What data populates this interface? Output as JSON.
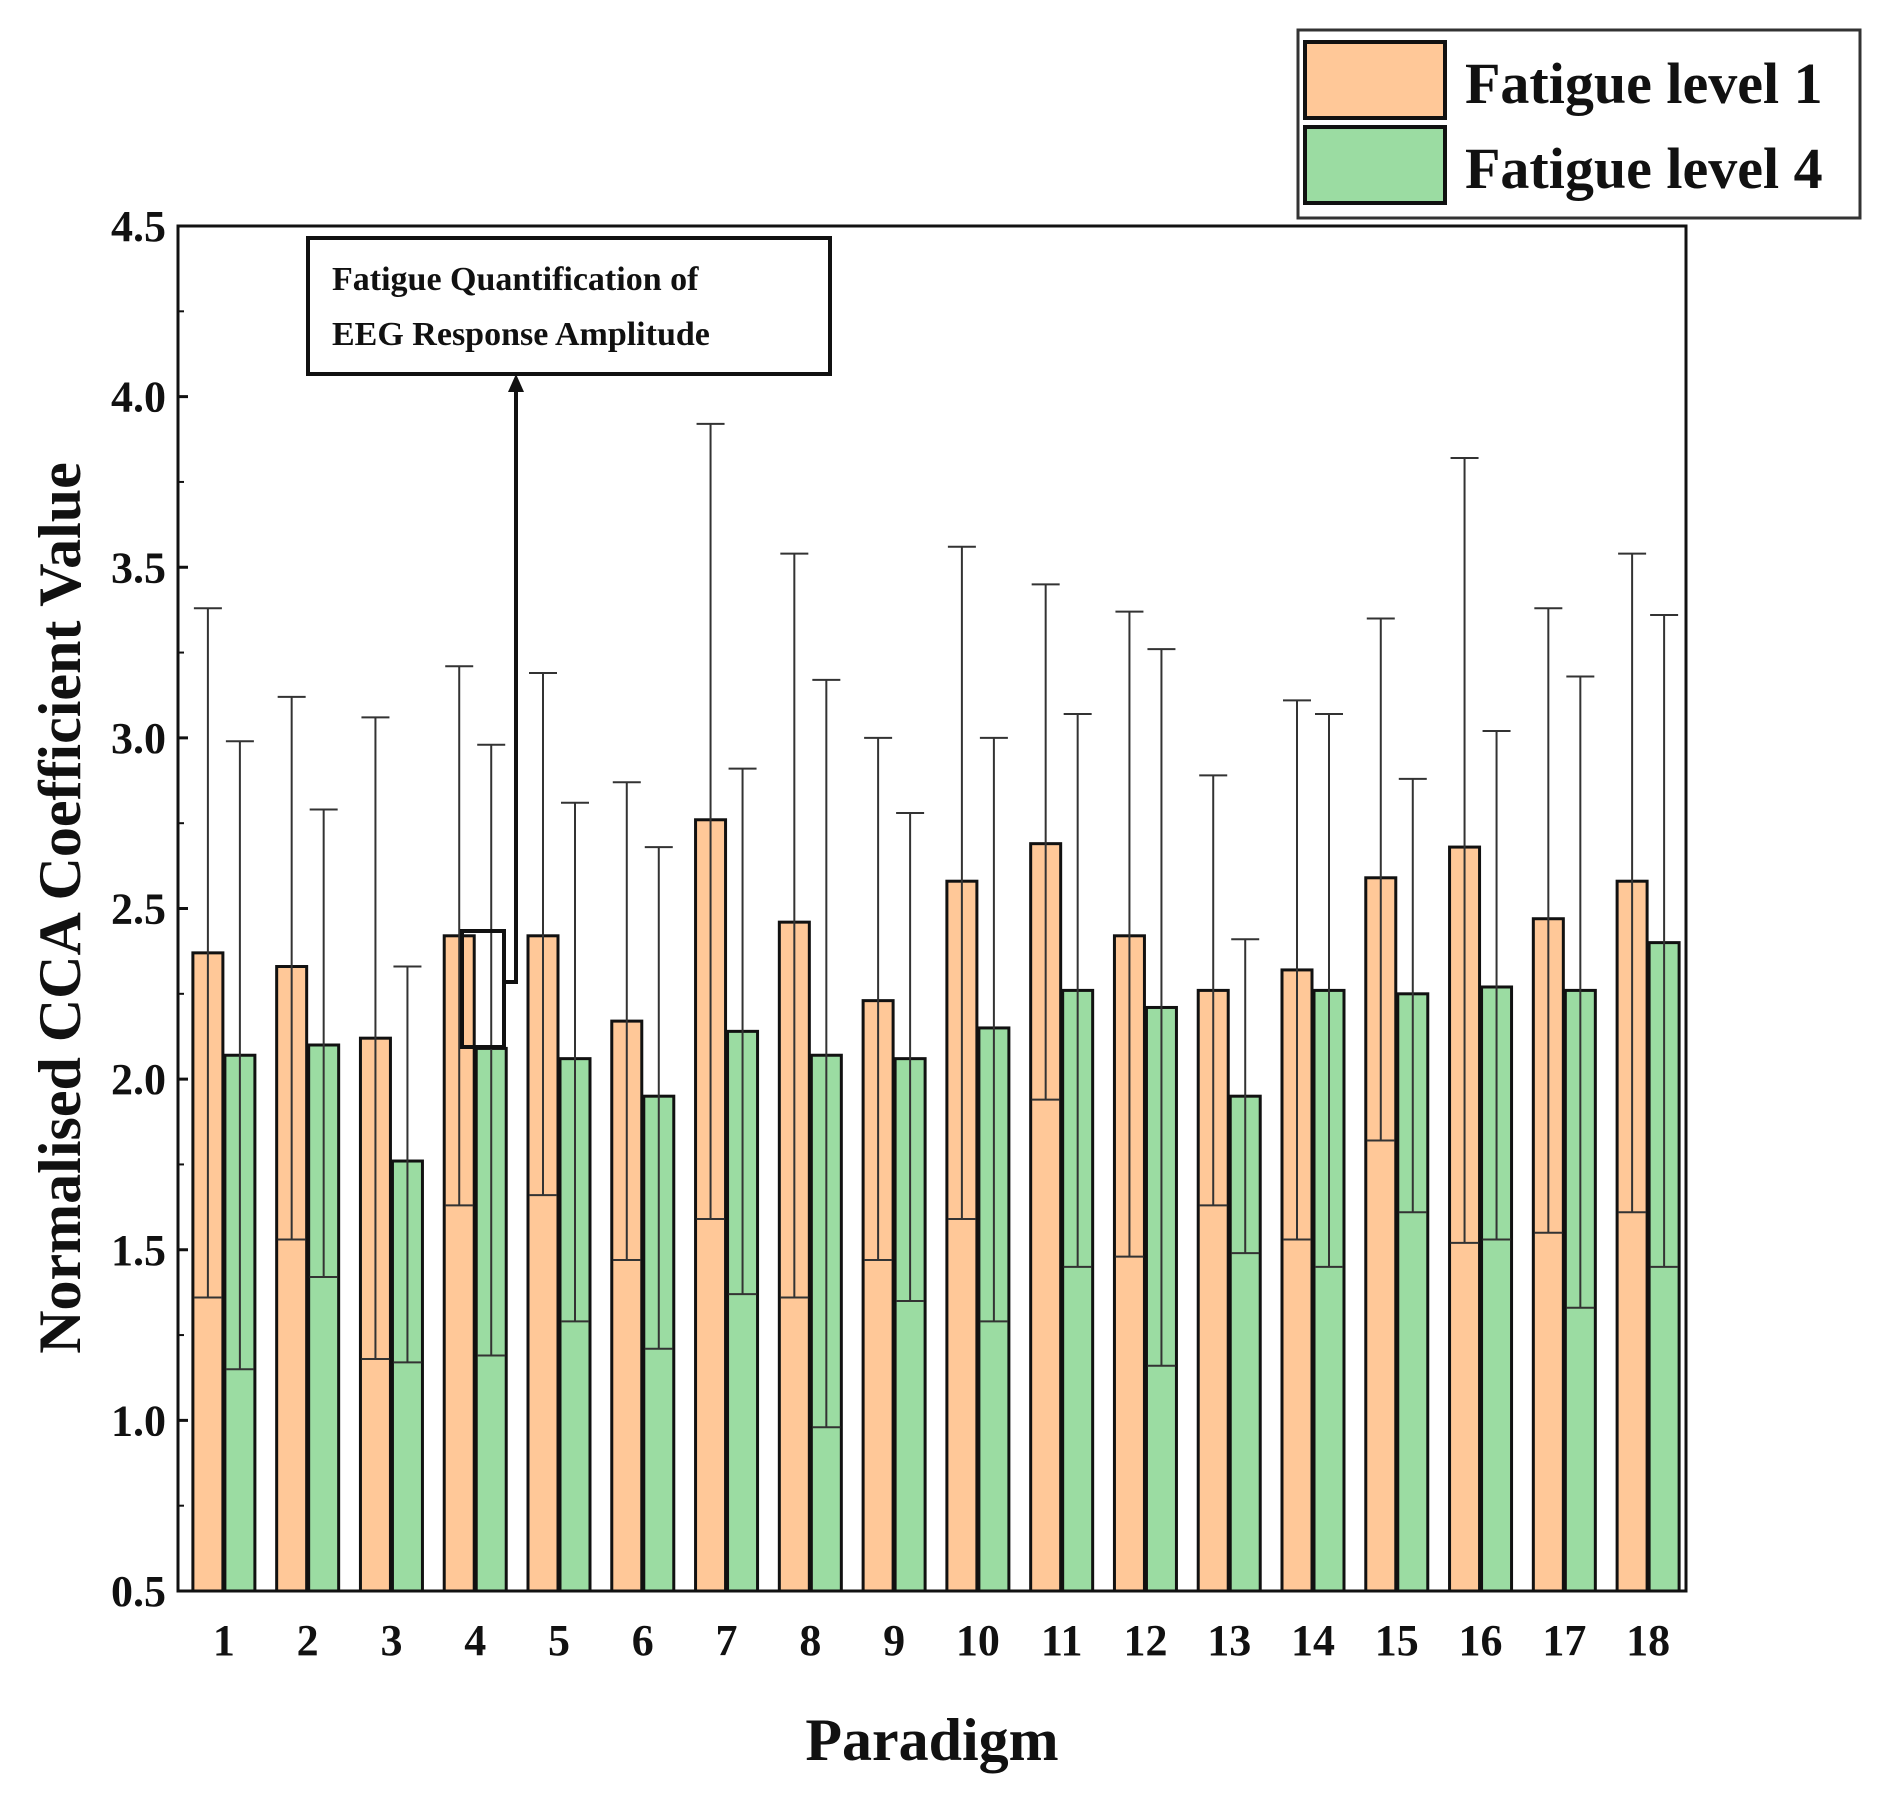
{
  "chart_data": {
    "type": "bar",
    "title": "",
    "xlabel": "Paradigm",
    "ylabel": "Normalised CCA Coefficient Value",
    "ylim": [
      0.5,
      4.5
    ],
    "yticks": [
      "0.5",
      "1.0",
      "1.5",
      "2.0",
      "2.5",
      "3.0",
      "3.5",
      "4.0",
      "4.5"
    ],
    "categories": [
      "1",
      "2",
      "3",
      "4",
      "5",
      "6",
      "7",
      "8",
      "9",
      "10",
      "11",
      "12",
      "13",
      "14",
      "15",
      "16",
      "17",
      "18"
    ],
    "series": [
      {
        "name": "Fatigue level 1",
        "color": "#FFC898",
        "values": [
          2.37,
          2.33,
          2.12,
          2.42,
          2.42,
          2.17,
          2.76,
          2.46,
          2.23,
          2.58,
          2.69,
          2.42,
          2.26,
          2.32,
          2.59,
          2.68,
          2.47,
          2.58
        ],
        "lower": [
          1.36,
          1.53,
          1.18,
          1.63,
          1.66,
          1.47,
          1.59,
          1.36,
          1.47,
          1.59,
          1.94,
          1.48,
          1.63,
          1.53,
          1.82,
          1.52,
          1.55,
          1.61
        ],
        "upper": [
          3.38,
          3.12,
          3.06,
          3.21,
          3.19,
          2.87,
          3.92,
          3.54,
          3.0,
          3.56,
          3.45,
          3.37,
          2.89,
          3.11,
          3.35,
          3.82,
          3.38,
          3.54
        ]
      },
      {
        "name": "Fatigue level 4",
        "color": "#9BDCA2",
        "values": [
          2.07,
          2.1,
          1.76,
          2.09,
          2.06,
          1.95,
          2.14,
          2.07,
          2.06,
          2.15,
          2.26,
          2.21,
          1.95,
          2.26,
          2.25,
          2.27,
          2.26,
          2.4
        ],
        "lower": [
          1.15,
          1.42,
          1.17,
          1.19,
          1.29,
          1.21,
          1.37,
          0.98,
          1.35,
          1.29,
          1.45,
          1.16,
          1.49,
          1.45,
          1.61,
          1.53,
          1.33,
          1.45
        ],
        "upper": [
          2.99,
          2.79,
          2.33,
          2.98,
          2.81,
          2.68,
          2.91,
          3.17,
          2.78,
          3.0,
          3.07,
          3.26,
          2.41,
          3.07,
          2.88,
          3.02,
          3.18,
          3.36
        ]
      }
    ],
    "legend_position": "top-right, outside plot",
    "annotation": {
      "lines": [
        "Fatigue Quantification of",
        "EEG Response Amplitude"
      ],
      "points_to": "paradigm 4, Fatigue level 4 bar"
    }
  }
}
